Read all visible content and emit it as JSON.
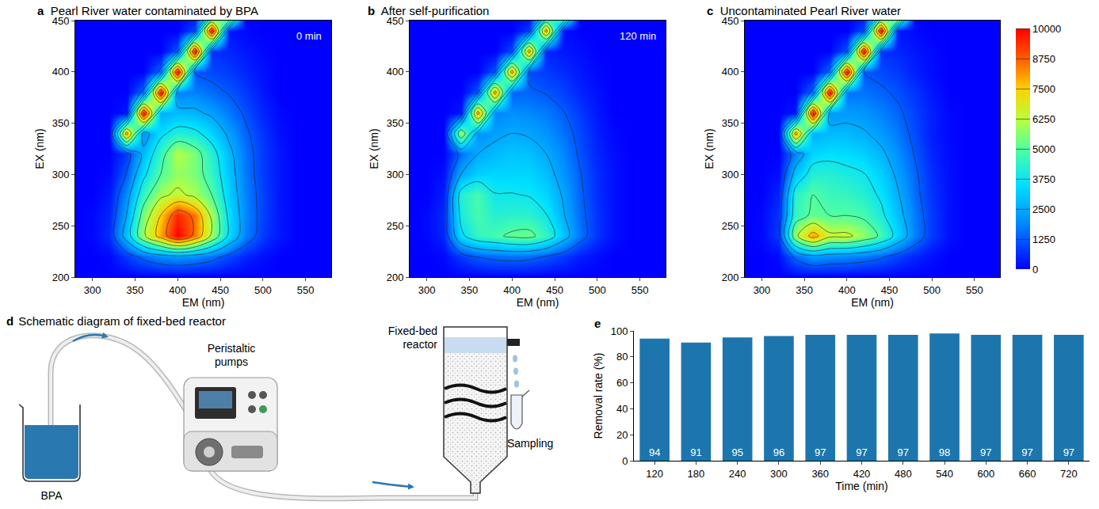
{
  "chart_data": [
    {
      "type": "contour",
      "panel": "a",
      "title": "Pearl River water contaminated by BPA",
      "annotation": "0 min",
      "x_label": "EM (nm)",
      "y_label": "EX (nm)",
      "x": [
        280,
        300,
        320,
        340,
        360,
        380,
        400,
        420,
        440,
        460,
        480,
        500,
        520,
        540,
        560,
        580
      ],
      "y": [
        200,
        220,
        240,
        260,
        280,
        300,
        320,
        340,
        360,
        380,
        400,
        420,
        440,
        460
      ],
      "z": [
        [
          0,
          0,
          0,
          0,
          0,
          0,
          0,
          0,
          0,
          0,
          0,
          0,
          0,
          0,
          0,
          0
        ],
        [
          0,
          0,
          100,
          800,
          1500,
          2000,
          2200,
          2000,
          1600,
          1000,
          500,
          200,
          0,
          0,
          0,
          0
        ],
        [
          0,
          100,
          600,
          3000,
          6000,
          8000,
          10000,
          8500,
          6000,
          3500,
          1800,
          800,
          300,
          0,
          0,
          0
        ],
        [
          0,
          100,
          500,
          2500,
          5500,
          7500,
          9500,
          8500,
          6000,
          3500,
          1900,
          900,
          300,
          0,
          0,
          0
        ],
        [
          0,
          0,
          300,
          2000,
          4500,
          6000,
          6500,
          6000,
          5000,
          3200,
          1800,
          900,
          300,
          0,
          0,
          0
        ],
        [
          0,
          0,
          100,
          1300,
          3500,
          5000,
          5800,
          5500,
          4500,
          3000,
          1700,
          800,
          300,
          0,
          0,
          0
        ],
        [
          0,
          0,
          0,
          800,
          2800,
          4500,
          6200,
          5500,
          4200,
          2800,
          1600,
          800,
          300,
          0,
          0,
          0
        ],
        [
          0,
          0,
          0,
          8000,
          2000,
          3500,
          4200,
          4000,
          3300,
          2300,
          1400,
          700,
          200,
          0,
          0,
          0
        ],
        [
          0,
          0,
          0,
          300,
          10000,
          2500,
          2800,
          2700,
          2300,
          1700,
          1100,
          500,
          100,
          0,
          0,
          0
        ],
        [
          0,
          0,
          0,
          0,
          1500,
          10000,
          1800,
          1800,
          1500,
          1200,
          800,
          300,
          0,
          0,
          0,
          0
        ],
        [
          0,
          0,
          0,
          0,
          0,
          1500,
          10000,
          1200,
          1000,
          800,
          500,
          200,
          0,
          0,
          0,
          0
        ],
        [
          0,
          0,
          0,
          0,
          0,
          0,
          1200,
          10000,
          700,
          500,
          300,
          100,
          0,
          0,
          0,
          0
        ],
        [
          0,
          0,
          0,
          0,
          0,
          0,
          0,
          1000,
          10000,
          300,
          100,
          0,
          0,
          0,
          0,
          0
        ],
        [
          0,
          0,
          0,
          0,
          0,
          0,
          0,
          0,
          1000,
          10000,
          0,
          0,
          0,
          0,
          0,
          0
        ]
      ],
      "xlim": [
        280,
        580
      ],
      "ylim": [
        200,
        450
      ],
      "xticks": [
        300,
        350,
        400,
        450,
        500,
        550
      ],
      "yticks": [
        200,
        250,
        300,
        350,
        400,
        450
      ],
      "zlim": [
        0,
        10000
      ],
      "zticks": [
        0,
        1250,
        2500,
        3750,
        5000,
        6250,
        7500,
        8750,
        10000
      ]
    },
    {
      "type": "contour",
      "panel": "b",
      "title": "After self-purification",
      "annotation": "120 min",
      "x_label": "EM (nm)",
      "y_label": "EX (nm)",
      "x": [
        280,
        300,
        320,
        340,
        360,
        380,
        400,
        420,
        440,
        460,
        480,
        500,
        520,
        540,
        560,
        580
      ],
      "y": [
        200,
        220,
        240,
        260,
        280,
        300,
        320,
        340,
        360,
        380,
        400,
        420,
        440,
        460
      ],
      "z": [
        [
          0,
          0,
          0,
          0,
          0,
          0,
          0,
          0,
          0,
          0,
          0,
          0,
          0,
          0,
          0,
          0
        ],
        [
          0,
          0,
          100,
          800,
          1300,
          1500,
          1600,
          1500,
          1200,
          800,
          400,
          150,
          0,
          0,
          0,
          0
        ],
        [
          0,
          100,
          500,
          3500,
          4500,
          4800,
          5200,
          5300,
          4500,
          3000,
          1600,
          700,
          200,
          0,
          0,
          0
        ],
        [
          0,
          100,
          600,
          4000,
          4800,
          4200,
          4300,
          4300,
          3800,
          2600,
          1500,
          700,
          200,
          0,
          0,
          0
        ],
        [
          0,
          0,
          400,
          4200,
          4800,
          3800,
          3800,
          3700,
          3300,
          2400,
          1400,
          600,
          200,
          0,
          0,
          0
        ],
        [
          0,
          0,
          200,
          2500,
          3200,
          3300,
          3300,
          3300,
          2900,
          2100,
          1300,
          600,
          200,
          0,
          0,
          0
        ],
        [
          0,
          0,
          0,
          1500,
          2500,
          2800,
          3000,
          2900,
          2500,
          1900,
          1100,
          500,
          150,
          0,
          0,
          0
        ],
        [
          0,
          0,
          0,
          6000,
          2000,
          2300,
          2500,
          2400,
          2100,
          1600,
          1000,
          400,
          100,
          0,
          0,
          0
        ],
        [
          0,
          0,
          0,
          300,
          8000,
          1800,
          2000,
          1900,
          1700,
          1300,
          800,
          300,
          0,
          0,
          0,
          0
        ],
        [
          0,
          0,
          0,
          0,
          1200,
          8000,
          1400,
          1400,
          1200,
          900,
          500,
          200,
          0,
          0,
          0,
          0
        ],
        [
          0,
          0,
          0,
          0,
          0,
          1200,
          8000,
          1000,
          800,
          600,
          300,
          100,
          0,
          0,
          0,
          0
        ],
        [
          0,
          0,
          0,
          0,
          0,
          0,
          1000,
          8000,
          500,
          300,
          200,
          0,
          0,
          0,
          0,
          0
        ],
        [
          0,
          0,
          0,
          0,
          0,
          0,
          0,
          800,
          8000,
          200,
          0,
          0,
          0,
          0,
          0,
          0
        ],
        [
          0,
          0,
          0,
          0,
          0,
          0,
          0,
          0,
          800,
          8000,
          0,
          0,
          0,
          0,
          0,
          0
        ]
      ],
      "xlim": [
        280,
        580
      ],
      "ylim": [
        200,
        450
      ],
      "xticks": [
        300,
        350,
        400,
        450,
        500,
        550
      ],
      "yticks": [
        200,
        250,
        300,
        350,
        400,
        450
      ],
      "zlim": [
        0,
        10000
      ],
      "zticks": [
        0,
        1250,
        2500,
        3750,
        5000,
        6250,
        7500,
        8750,
        10000
      ]
    },
    {
      "type": "contour",
      "panel": "c",
      "title": "Uncontaminated Pearl River water",
      "x_label": "EM (nm)",
      "y_label": "EX (nm)",
      "x": [
        280,
        300,
        320,
        340,
        360,
        380,
        400,
        420,
        440,
        460,
        480,
        500,
        520,
        540,
        560,
        580
      ],
      "y": [
        200,
        220,
        240,
        260,
        280,
        300,
        320,
        340,
        360,
        380,
        400,
        420,
        440,
        460
      ],
      "z": [
        [
          0,
          0,
          0,
          0,
          0,
          0,
          0,
          0,
          0,
          0,
          0,
          0,
          0,
          0,
          0,
          0
        ],
        [
          0,
          0,
          150,
          1500,
          2200,
          2000,
          1900,
          1700,
          1400,
          900,
          500,
          200,
          0,
          0,
          0,
          0
        ],
        [
          0,
          100,
          800,
          6000,
          8000,
          6500,
          6500,
          5800,
          4800,
          3300,
          1800,
          800,
          200,
          0,
          0,
          0
        ],
        [
          0,
          100,
          700,
          4500,
          5200,
          5000,
          5000,
          4800,
          4000,
          2900,
          1700,
          800,
          200,
          0,
          0,
          0
        ],
        [
          0,
          0,
          500,
          4300,
          5000,
          4600,
          4500,
          4200,
          3600,
          2600,
          1500,
          700,
          200,
          0,
          0,
          0
        ],
        [
          0,
          0,
          200,
          3000,
          4200,
          4200,
          4000,
          3800,
          3200,
          2300,
          1400,
          600,
          200,
          0,
          0,
          0
        ],
        [
          0,
          0,
          0,
          1800,
          3300,
          3500,
          3400,
          3200,
          2700,
          2000,
          1200,
          500,
          150,
          0,
          0,
          0
        ],
        [
          0,
          0,
          0,
          8000,
          2600,
          2800,
          2800,
          2600,
          2200,
          1700,
          1000,
          400,
          100,
          0,
          0,
          0
        ],
        [
          0,
          0,
          0,
          300,
          10000,
          2100,
          2200,
          2100,
          1800,
          1400,
          900,
          400,
          100,
          0,
          0,
          0
        ],
        [
          0,
          0,
          0,
          0,
          1500,
          10000,
          1600,
          1600,
          1400,
          1100,
          700,
          300,
          0,
          0,
          0,
          0
        ],
        [
          0,
          0,
          0,
          0,
          0,
          1500,
          10000,
          1200,
          1000,
          800,
          400,
          150,
          0,
          0,
          0,
          0
        ],
        [
          0,
          0,
          0,
          0,
          0,
          0,
          1200,
          10000,
          700,
          500,
          300,
          100,
          0,
          0,
          0,
          0
        ],
        [
          0,
          0,
          0,
          0,
          0,
          0,
          0,
          1000,
          10000,
          300,
          100,
          0,
          0,
          0,
          0,
          0
        ],
        [
          0,
          0,
          0,
          0,
          0,
          0,
          0,
          0,
          1000,
          10000,
          0,
          0,
          0,
          0,
          0,
          0
        ]
      ],
      "xlim": [
        280,
        580
      ],
      "ylim": [
        200,
        450
      ],
      "xticks": [
        300,
        350,
        400,
        450,
        500,
        550
      ],
      "yticks": [
        200,
        250,
        300,
        350,
        400,
        450
      ],
      "zlim": [
        0,
        10000
      ],
      "zticks": [
        0,
        1250,
        2500,
        3750,
        5000,
        6250,
        7500,
        8750,
        10000
      ]
    },
    {
      "type": "bar",
      "panel": "e",
      "x_label": "Time (min)",
      "y_label": "Removal rate (%)",
      "categories": [
        "120",
        "180",
        "240",
        "300",
        "360",
        "420",
        "480",
        "540",
        "600",
        "660",
        "720"
      ],
      "values": [
        94,
        91,
        95,
        96,
        97,
        97,
        97,
        98,
        97,
        97,
        97
      ],
      "color": "#1c76ad",
      "ylim": [
        0,
        100
      ],
      "yticks": [
        0,
        20,
        40,
        60,
        80,
        100
      ],
      "data_labels": true
    }
  ],
  "diagram": {
    "panel": "d",
    "title": "Schematic diagram of fixed-bed reactor",
    "labels": {
      "source": "BPA",
      "pump": "Peristaltic pumps",
      "reactor": "Fixed-bed reactor",
      "sampling": "Sampling"
    }
  }
}
